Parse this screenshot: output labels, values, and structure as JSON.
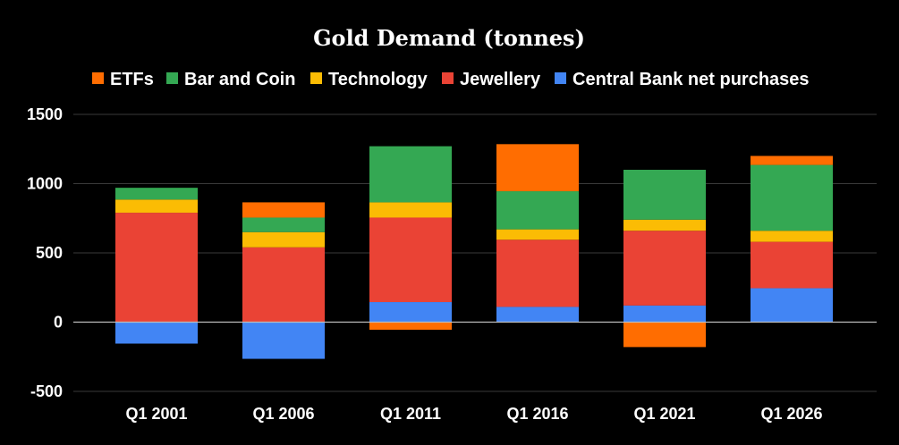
{
  "chart_data": {
    "type": "bar",
    "stacked": true,
    "title": "Gold Demand (tonnes)",
    "xlabel": "",
    "ylabel": "",
    "categories": [
      "Q1 2001",
      "Q1 2006",
      "Q1 2011",
      "Q1 2016",
      "Q1 2021",
      "Q1 2026"
    ],
    "ylim": [
      -500,
      1500
    ],
    "yticks": [
      -500,
      0,
      500,
      1000,
      1500
    ],
    "grid": true,
    "legend_position": "top",
    "legend_order": [
      "ETFs",
      "Bar and Coin",
      "Technology",
      "Jewellery",
      "Central Bank net purchases"
    ],
    "series": [
      {
        "name": "Central Bank net purchases",
        "color": "#4285f4",
        "values": [
          -155,
          -265,
          145,
          110,
          120,
          245
        ]
      },
      {
        "name": "Jewellery",
        "color": "#ea4335",
        "values": [
          790,
          540,
          610,
          485,
          540,
          335
        ]
      },
      {
        "name": "Technology",
        "color": "#fbbc04",
        "values": [
          95,
          110,
          110,
          75,
          80,
          80
        ]
      },
      {
        "name": "Bar and Coin",
        "color": "#34a853",
        "values": [
          85,
          105,
          405,
          275,
          360,
          475
        ]
      },
      {
        "name": "ETFs",
        "color": "#ff6d01",
        "values": [
          0,
          110,
          -55,
          340,
          -180,
          65
        ]
      }
    ]
  }
}
